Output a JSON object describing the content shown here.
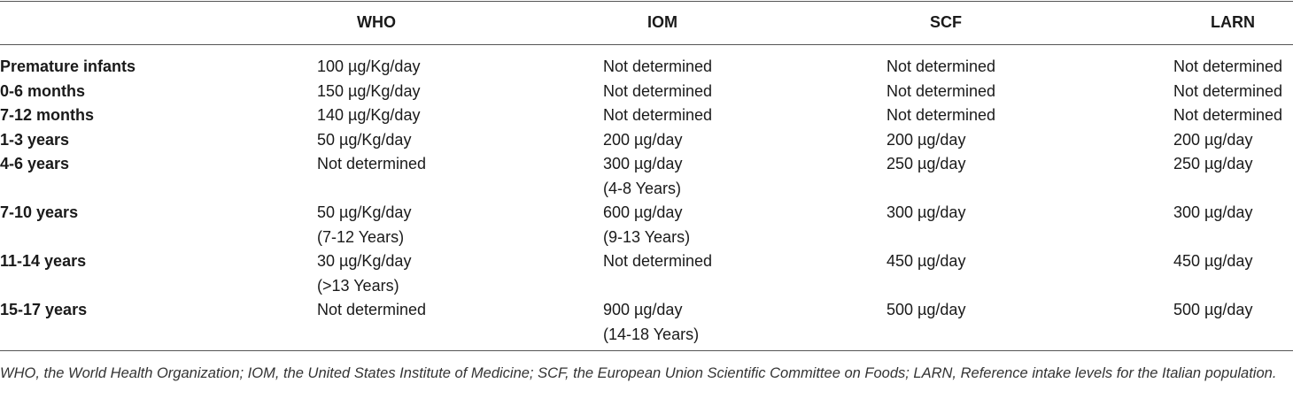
{
  "table": {
    "header": [
      "WHO",
      "IOM",
      "SCF",
      "LARN"
    ],
    "rows": [
      {
        "label": "Premature infants",
        "cells": [
          [
            "100 µg/Kg/day"
          ],
          [
            "Not determined"
          ],
          [
            "Not determined"
          ],
          [
            "Not determined"
          ]
        ]
      },
      {
        "label": "0-6 months",
        "cells": [
          [
            "150 µg/Kg/day"
          ],
          [
            "Not determined"
          ],
          [
            "Not determined"
          ],
          [
            "Not determined"
          ]
        ]
      },
      {
        "label": "7-12 months",
        "cells": [
          [
            "140 µg/Kg/day"
          ],
          [
            "Not determined"
          ],
          [
            "Not determined"
          ],
          [
            "Not determined"
          ]
        ]
      },
      {
        "label": "1-3 years",
        "cells": [
          [
            "50 µg/Kg/day"
          ],
          [
            "200 µg/day"
          ],
          [
            "200 µg/day"
          ],
          [
            "200 µg/day"
          ]
        ]
      },
      {
        "label": "4-6 years",
        "cells": [
          [
            "Not determined"
          ],
          [
            "300 µg/day",
            "(4-8 Years)"
          ],
          [
            "250 µg/day"
          ],
          [
            "250 µg/day"
          ]
        ]
      },
      {
        "label": "7-10 years",
        "cells": [
          [
            "50 µg/Kg/day",
            "(7-12 Years)"
          ],
          [
            "600 µg/day",
            "(9-13 Years)"
          ],
          [
            "300 µg/day"
          ],
          [
            "300 µg/day"
          ]
        ]
      },
      {
        "label": "11-14 years",
        "cells": [
          [
            "30 µg/Kg/day",
            "(>13 Years)"
          ],
          [
            "Not determined"
          ],
          [
            "450 µg/day"
          ],
          [
            "450 µg/day"
          ]
        ]
      },
      {
        "label": "15-17 years",
        "cells": [
          [
            "Not determined"
          ],
          [
            "900 µg/day",
            "(14-18 Years)"
          ],
          [
            "500 µg/day"
          ],
          [
            "500 µg/day"
          ]
        ]
      }
    ],
    "footnote": "WHO, the World Health Organization; IOM, the United States Institute of Medicine; SCF, the European Union Scientific Committee on Foods; LARN, Reference intake levels for the Italian population."
  }
}
